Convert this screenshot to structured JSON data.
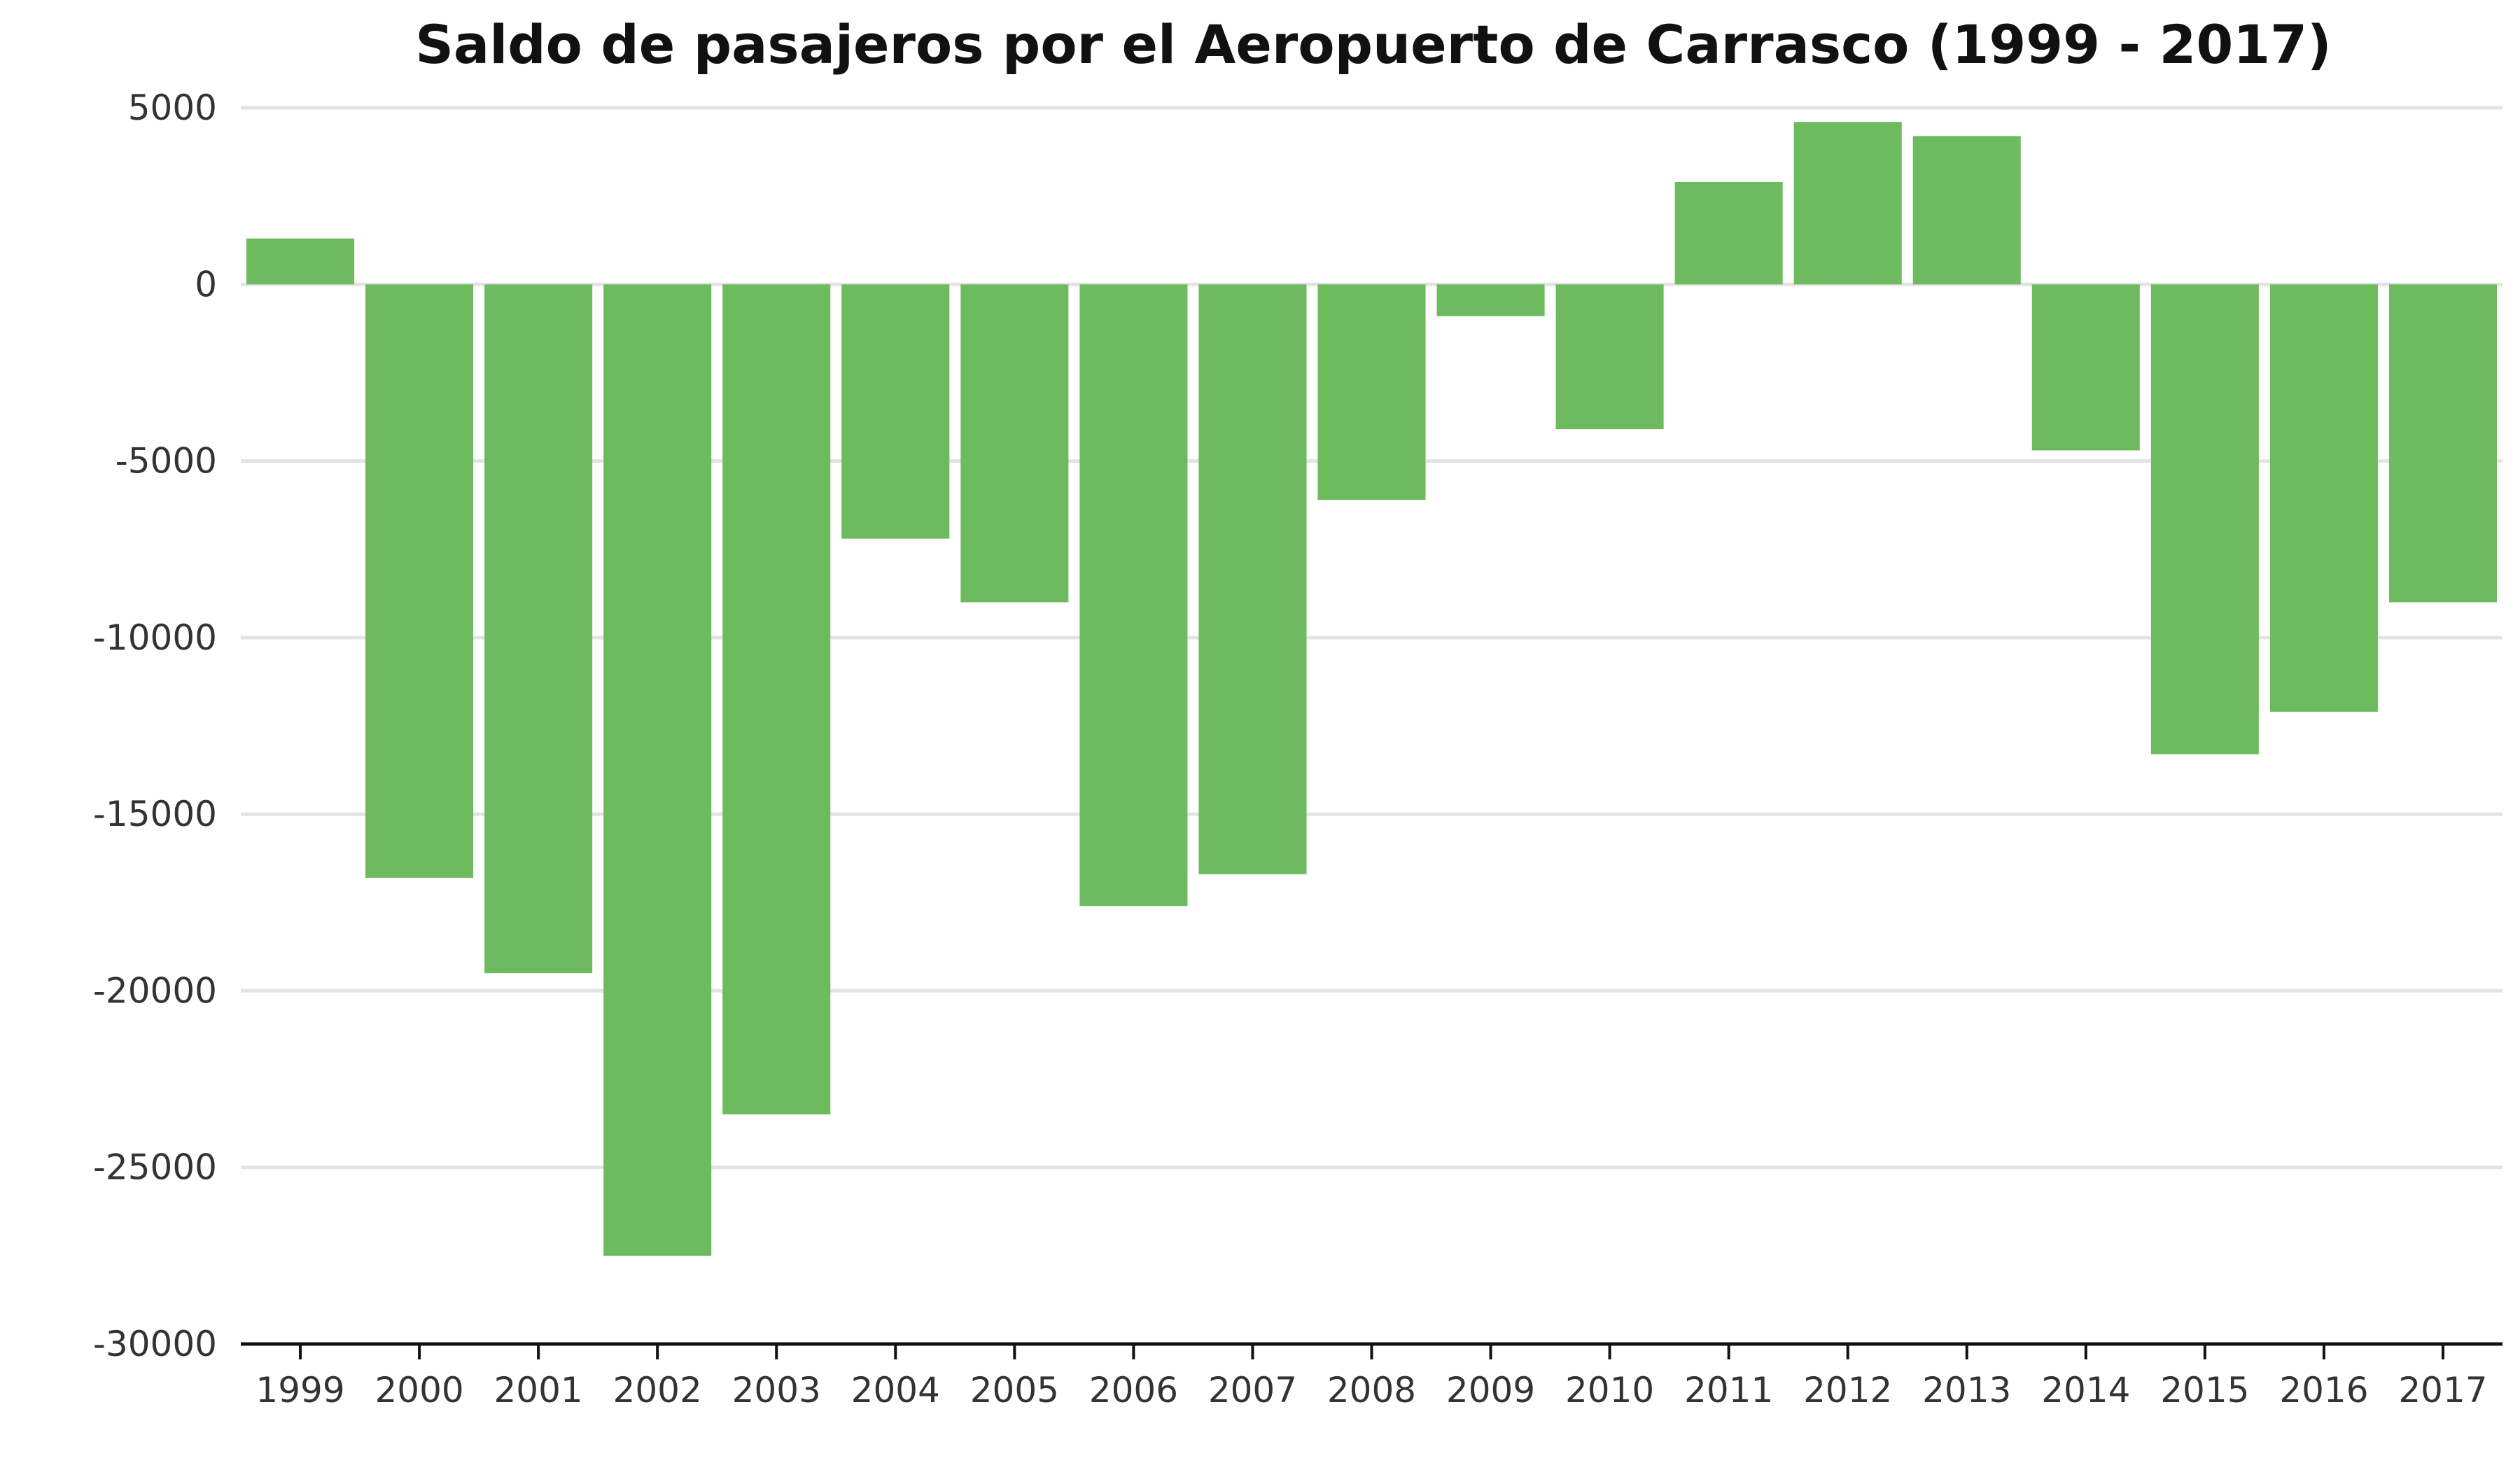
{
  "chart_data": {
    "type": "bar",
    "title": "Saldo de pasajeros por el Aeropuerto de Carrasco (1999 - 2017)",
    "xlabel": "",
    "ylabel": "",
    "categories": [
      "1999",
      "2000",
      "2001",
      "2002",
      "2003",
      "2004",
      "2005",
      "2006",
      "2007",
      "2008",
      "2009",
      "2010",
      "2011",
      "2012",
      "2013",
      "2014",
      "2015",
      "2016",
      "2017"
    ],
    "values": [
      1300,
      -16800,
      -19500,
      -27500,
      -23500,
      -7200,
      -9000,
      -17600,
      -16700,
      -6100,
      -900,
      -4100,
      2900,
      4600,
      4200,
      -4700,
      -13300,
      -12100,
      -9000
    ],
    "ylim": [
      -30000,
      5000
    ],
    "yticks": [
      5000,
      0,
      -5000,
      -10000,
      -15000,
      -20000,
      -25000,
      -30000
    ],
    "bar_color": "#6eba5e",
    "grid": true,
    "legend": "none"
  }
}
